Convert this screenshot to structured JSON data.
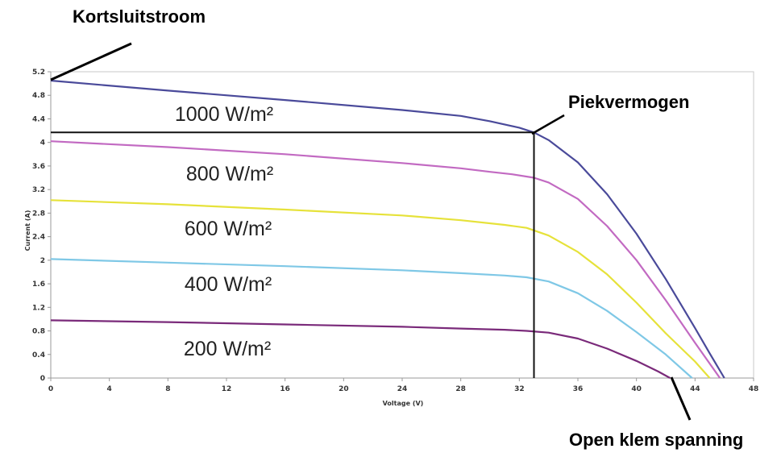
{
  "chart_data": {
    "type": "line",
    "xlabel": "Voltage (V)",
    "ylabel": "Current (A)",
    "xlim": [
      0,
      48
    ],
    "ylim": [
      0,
      5.2
    ],
    "xticks": [
      0,
      4,
      8,
      12,
      16,
      20,
      24,
      28,
      32,
      36,
      40,
      44,
      48
    ],
    "yticks": [
      0,
      0.4,
      0.8,
      1.2,
      1.6,
      2,
      2.4,
      2.8,
      3.2,
      3.6,
      4,
      4.4,
      4.8,
      5.2
    ],
    "series": [
      {
        "name": "1000 W/m²",
        "color": "#4a4a9a",
        "x": [
          0,
          8,
          16,
          24,
          28,
          30,
          32,
          33,
          34,
          36,
          38,
          40,
          42,
          44,
          45,
          46
        ],
        "y": [
          5.05,
          4.88,
          4.72,
          4.55,
          4.45,
          4.36,
          4.25,
          4.17,
          4.04,
          3.66,
          3.12,
          2.45,
          1.68,
          0.85,
          0.42,
          0.0
        ]
      },
      {
        "name": "800 W/m²",
        "color": "#c26ac2",
        "x": [
          0,
          8,
          16,
          24,
          28,
          30,
          31.5,
          33,
          34,
          36,
          38,
          40,
          42,
          44,
          45.7
        ],
        "y": [
          4.02,
          3.92,
          3.8,
          3.65,
          3.56,
          3.5,
          3.46,
          3.4,
          3.32,
          3.04,
          2.58,
          2.0,
          1.32,
          0.6,
          0.0
        ]
      },
      {
        "name": "600 W/m²",
        "color": "#e6e23a",
        "x": [
          0,
          8,
          16,
          24,
          28,
          31,
          32.5,
          34,
          36,
          38,
          40,
          42,
          44,
          45
        ],
        "y": [
          3.02,
          2.95,
          2.86,
          2.76,
          2.68,
          2.6,
          2.55,
          2.42,
          2.14,
          1.76,
          1.28,
          0.76,
          0.28,
          0.0
        ]
      },
      {
        "name": "400 W/m²",
        "color": "#7fc8e6",
        "x": [
          0,
          8,
          16,
          24,
          28,
          31,
          32.5,
          34,
          36,
          38,
          40,
          42,
          43.8
        ],
        "y": [
          2.02,
          1.96,
          1.9,
          1.83,
          1.78,
          1.74,
          1.71,
          1.64,
          1.44,
          1.14,
          0.78,
          0.4,
          0.0
        ]
      },
      {
        "name": "200 W/m²",
        "color": "#7a2a7a",
        "x": [
          0,
          8,
          16,
          24,
          28,
          31,
          32.5,
          34,
          36,
          38,
          40,
          41.5,
          42.3
        ],
        "y": [
          0.98,
          0.95,
          0.91,
          0.87,
          0.84,
          0.82,
          0.8,
          0.77,
          0.67,
          0.5,
          0.29,
          0.11,
          0.0
        ]
      }
    ],
    "annotations": {
      "short_circuit": "Kortsluitstroom",
      "peak_power": "Piekvermogen",
      "open_circuit": "Open klem spanning"
    },
    "peak_point": {
      "x": 33,
      "y": 4.17
    }
  }
}
